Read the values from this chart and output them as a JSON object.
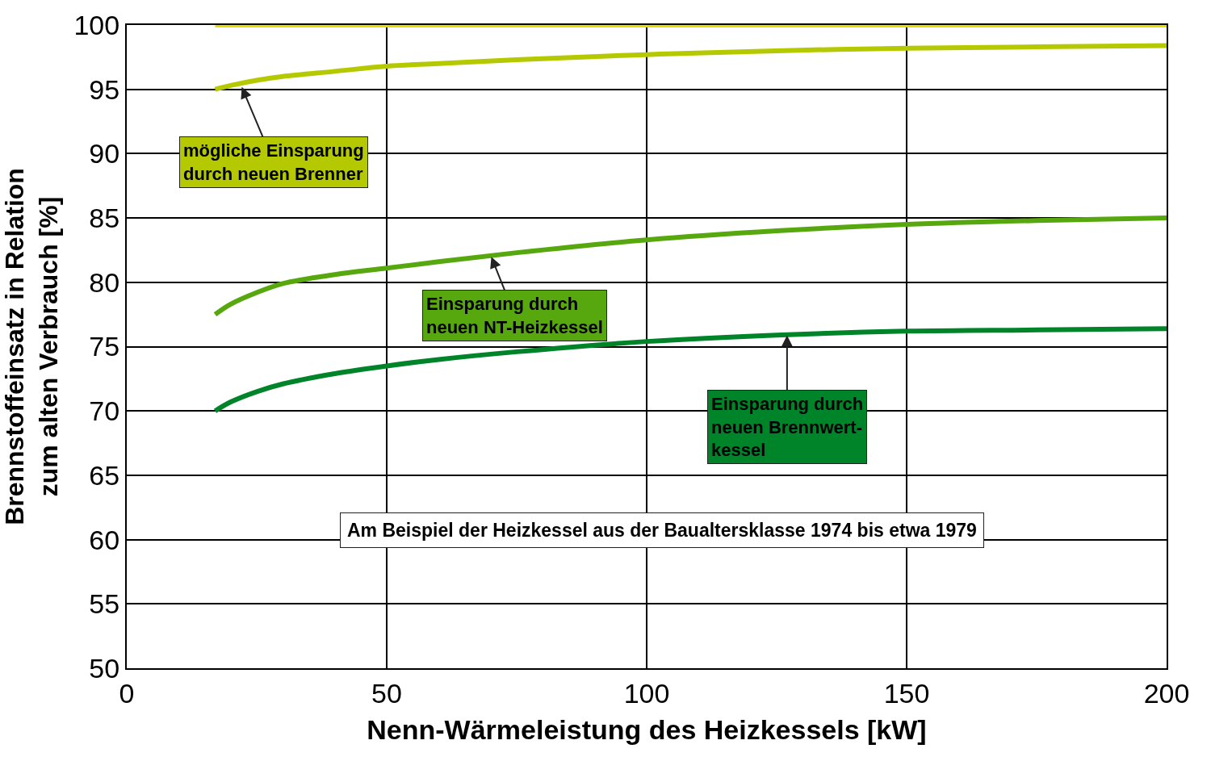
{
  "chart_data": {
    "type": "line",
    "xlabel": "Nenn-Wärmeleistung des Heizkessels [kW]",
    "ylabel": "Brennstoffeinsatz in Relation\nzum alten Verbrauch [%]",
    "x": [
      17,
      20,
      25,
      30,
      40,
      50,
      60,
      75,
      100,
      125,
      150,
      175,
      200
    ],
    "series": [
      {
        "color": "#e6dc00",
        "values": [
          100,
          100,
          100,
          100,
          100,
          100,
          100,
          100,
          100,
          100,
          100,
          100,
          100
        ]
      },
      {
        "color": "#b5c900",
        "values": [
          95.0,
          95.3,
          95.7,
          96.0,
          96.4,
          96.8,
          97.0,
          97.3,
          97.7,
          98.0,
          98.2,
          98.3,
          98.4
        ]
      },
      {
        "color": "#57a80f",
        "values": [
          77.5,
          78.3,
          79.2,
          79.9,
          80.6,
          81.1,
          81.6,
          82.3,
          83.3,
          84.0,
          84.5,
          84.8,
          85.0
        ]
      },
      {
        "color": "#00842a",
        "values": [
          70.0,
          70.7,
          71.5,
          72.1,
          72.9,
          73.5,
          74.0,
          74.6,
          75.4,
          75.9,
          76.2,
          76.3,
          76.4
        ]
      }
    ],
    "annotations": [
      {
        "text": "mögliche Einsparung\ndurch neuen Brenner",
        "x": 22,
        "y": 95.3
      },
      {
        "text": "Einsparung durch\nneuen NT-Heizkessel",
        "x": 70,
        "y": 82.1
      },
      {
        "text": "Einsparung durch\nneuen Brennwert-\nkessel",
        "x": 127,
        "y": 76
      },
      "Am Beispiel der Heizkessel aus der Baualtersklasse 1974 bis etwa 1979"
    ],
    "xlim": [
      0,
      200
    ],
    "xticks": [
      0,
      50,
      100,
      150,
      200
    ],
    "ylim": [
      50,
      100
    ],
    "yticks": [
      50,
      55,
      60,
      65,
      70,
      75,
      80,
      85,
      90,
      95,
      100
    ],
    "grid": true,
    "marker": "none",
    "line_style": "solid"
  }
}
